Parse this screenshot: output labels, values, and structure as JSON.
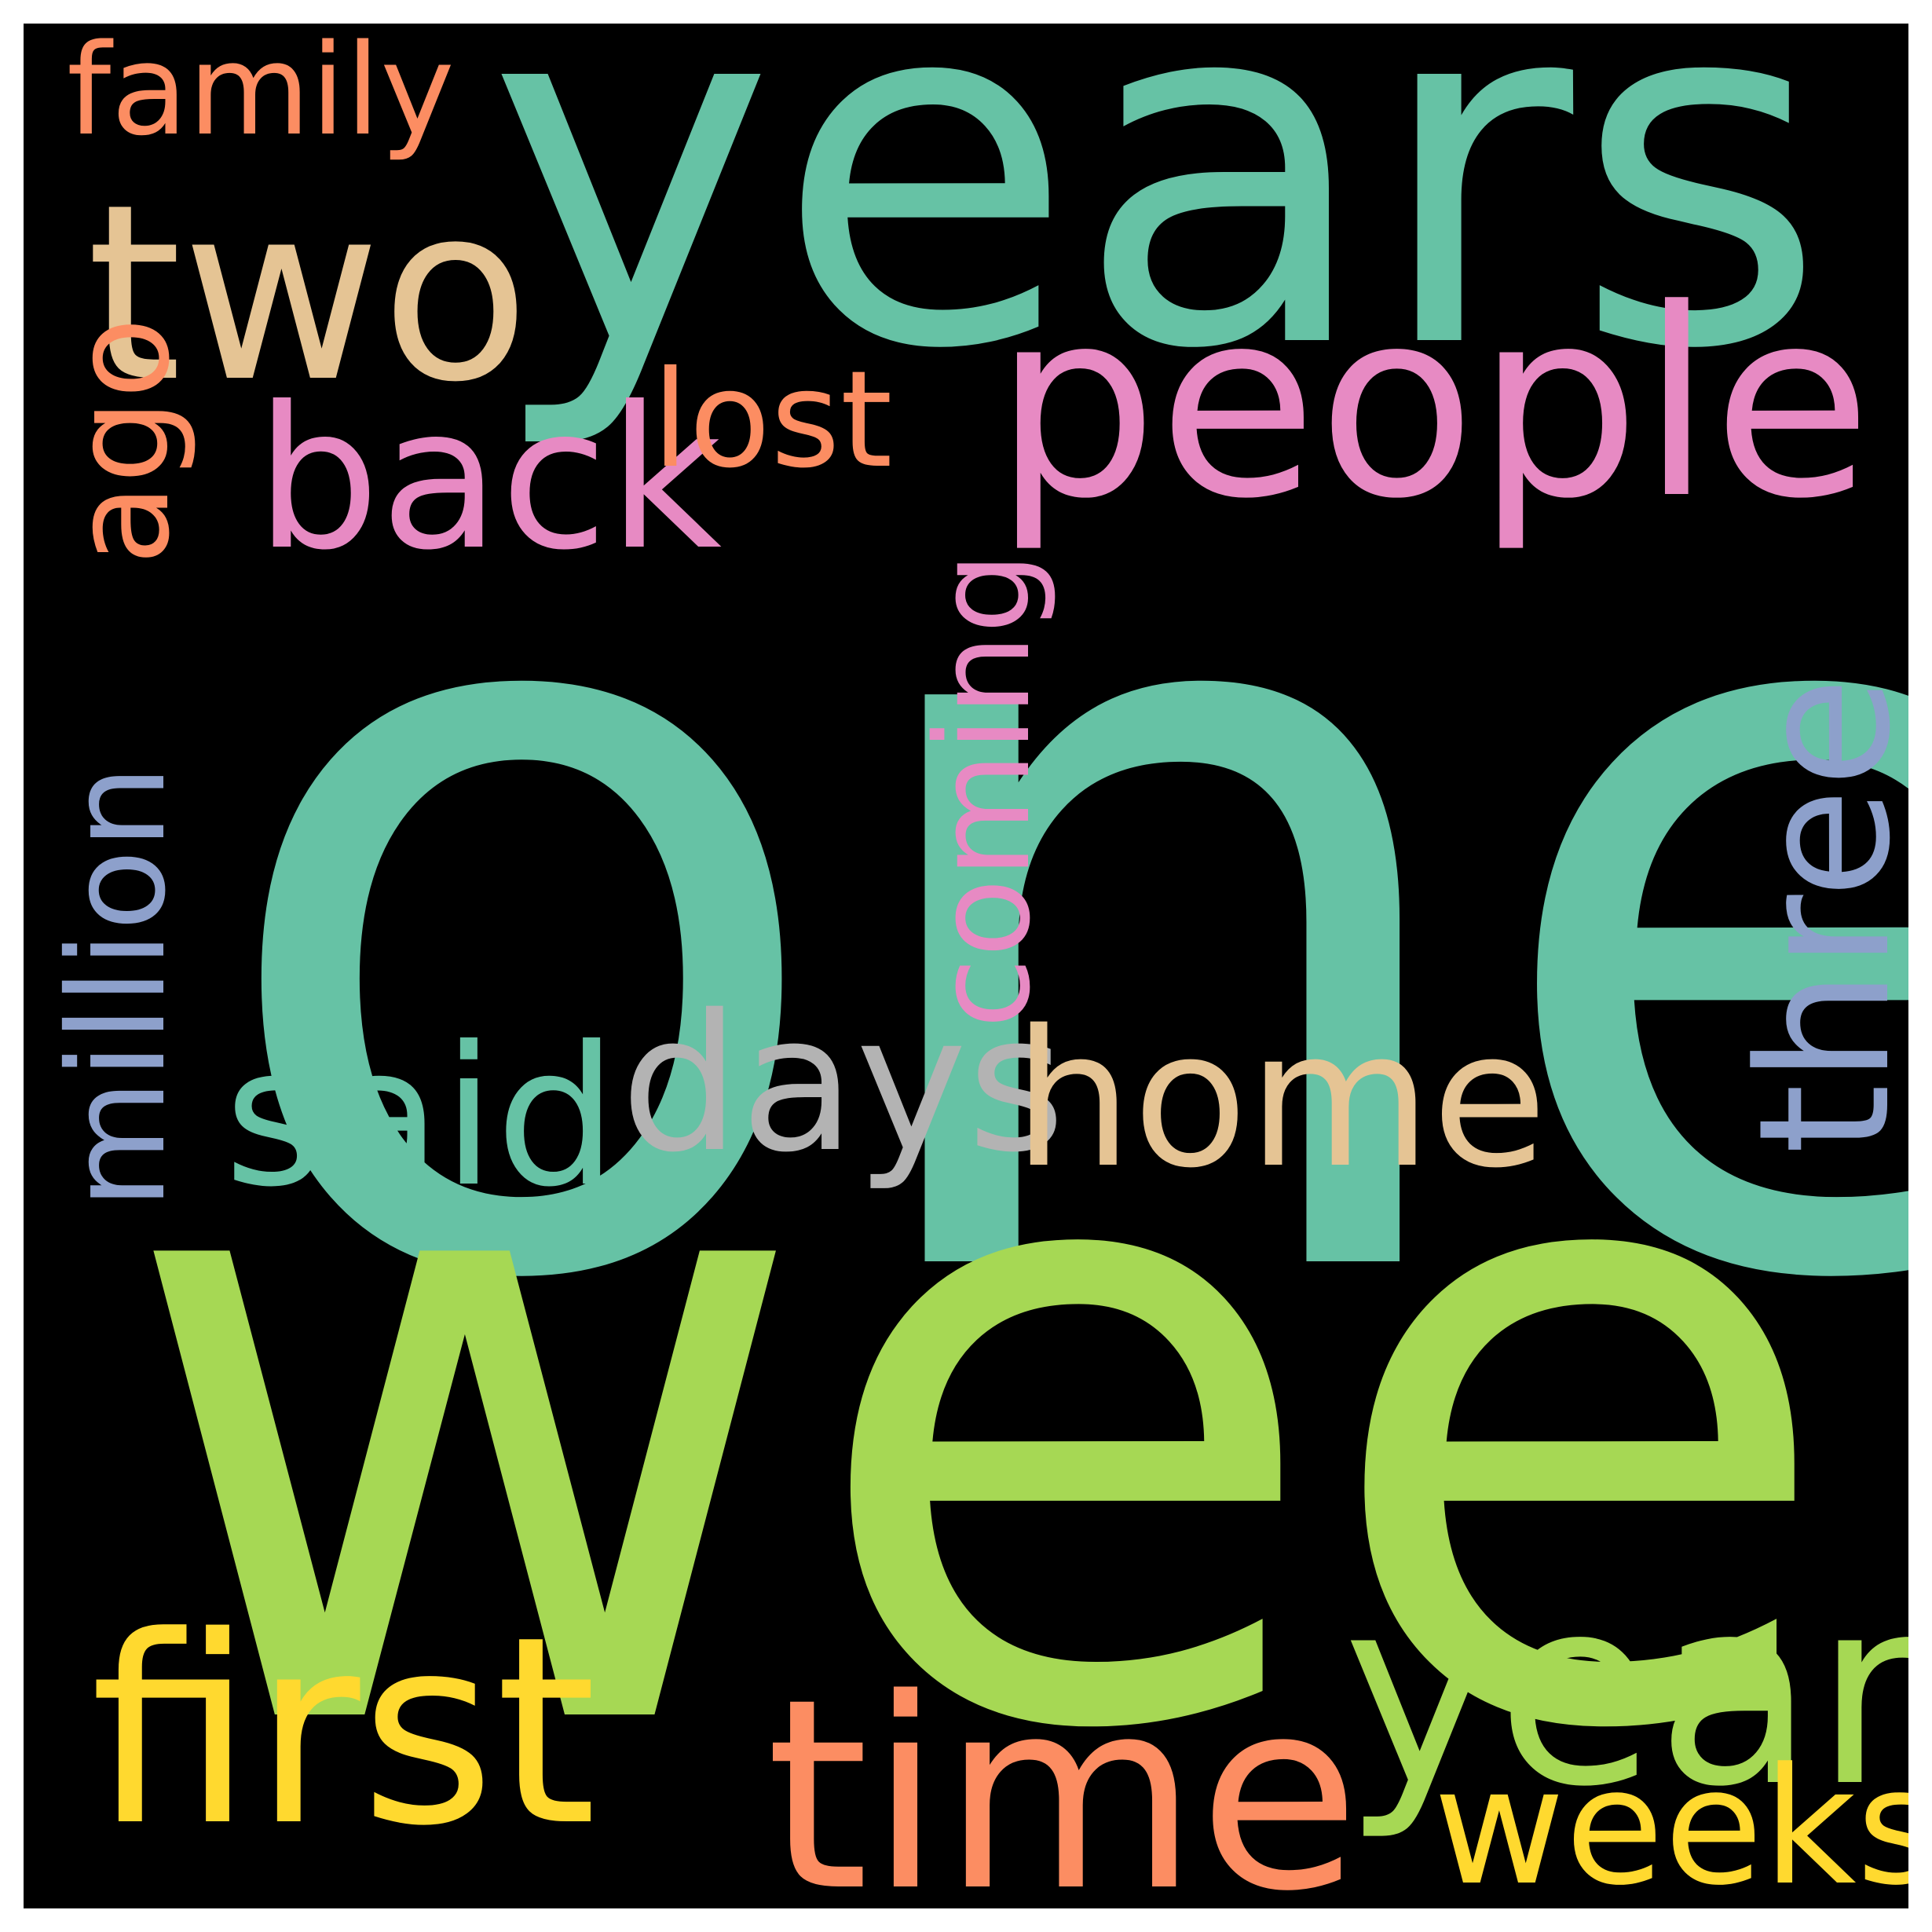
{
  "wordcloud": {
    "background": "#000000",
    "words": [
      {
        "key": "one",
        "text": "one",
        "color": "#66c2a5",
        "orientation": "horizontal"
      },
      {
        "key": "week",
        "text": "week",
        "color": "#a6d854",
        "orientation": "horizontal"
      },
      {
        "key": "years",
        "text": "years",
        "color": "#66c2a5",
        "orientation": "horizontal"
      },
      {
        "key": "people",
        "text": "people",
        "color": "#e78ac3",
        "orientation": "horizontal"
      },
      {
        "key": "two",
        "text": "two",
        "color": "#e5c494",
        "orientation": "horizontal"
      },
      {
        "key": "time",
        "text": "time",
        "color": "#fc8d62",
        "orientation": "horizontal"
      },
      {
        "key": "first",
        "text": "first",
        "color": "#ffd92f",
        "orientation": "horizontal"
      },
      {
        "key": "year",
        "text": "year",
        "color": "#a6d854",
        "orientation": "horizontal"
      },
      {
        "key": "back",
        "text": "back",
        "color": "#e78ac3",
        "orientation": "horizontal"
      },
      {
        "key": "said",
        "text": "said",
        "color": "#66c2a5",
        "orientation": "horizontal"
      },
      {
        "key": "days",
        "text": "days",
        "color": "#b3b3b3",
        "orientation": "horizontal"
      },
      {
        "key": "home",
        "text": "home",
        "color": "#e5c494",
        "orientation": "horizontal"
      },
      {
        "key": "three",
        "text": "three",
        "color": "#8da0cb",
        "orientation": "vertical"
      },
      {
        "key": "weeks",
        "text": "weeks",
        "color": "#ffd92f",
        "orientation": "horizontal"
      },
      {
        "key": "million",
        "text": "million",
        "color": "#8da0cb",
        "orientation": "vertical"
      },
      {
        "key": "ago",
        "text": "ago",
        "color": "#fc8d62",
        "orientation": "vertical"
      },
      {
        "key": "lost",
        "text": "lost",
        "color": "#fc8d62",
        "orientation": "horizontal"
      },
      {
        "key": "family",
        "text": "family",
        "color": "#fc8d62",
        "orientation": "horizontal"
      },
      {
        "key": "coming",
        "text": "coming",
        "color": "#e78ac3",
        "orientation": "vertical"
      }
    ]
  }
}
